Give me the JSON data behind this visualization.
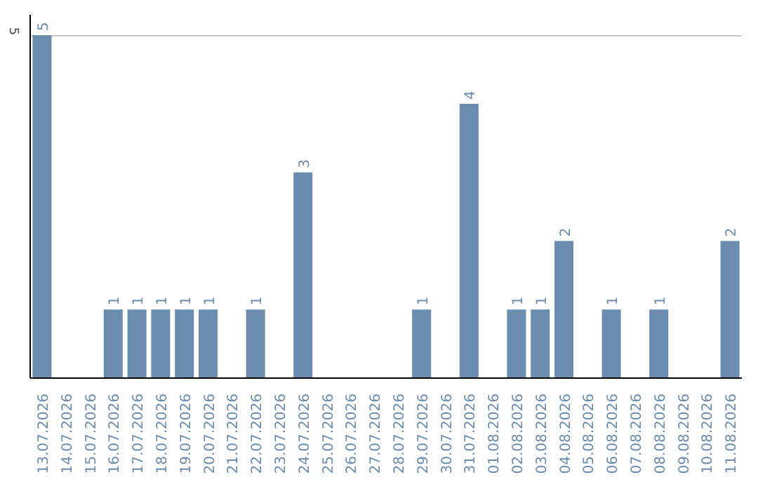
{
  "chart_data": {
    "type": "bar",
    "categories": [
      "13.07.2026",
      "14.07.2026",
      "15.07.2026",
      "16.07.2026",
      "17.07.2026",
      "18.07.2026",
      "19.07.2026",
      "20.07.2026",
      "21.07.2026",
      "22.07.2026",
      "23.07.2026",
      "24.07.2026",
      "25.07.2026",
      "26.07.2026",
      "27.07.2026",
      "28.07.2026",
      "29.07.2026",
      "30.07.2026",
      "31.07.2026",
      "01.08.2026",
      "02.08.2026",
      "03.08.2026",
      "04.08.2026",
      "05.08.2026",
      "06.08.2026",
      "07.08.2026",
      "08.08.2026",
      "09.08.2026",
      "10.08.2026",
      "11.08.2026"
    ],
    "values": [
      5,
      0,
      0,
      1,
      1,
      1,
      1,
      1,
      0,
      1,
      0,
      3,
      0,
      0,
      0,
      0,
      1,
      0,
      4,
      0,
      1,
      1,
      2,
      0,
      1,
      0,
      1,
      0,
      0,
      2
    ],
    "value_labels": [
      "5",
      null,
      null,
      "1",
      "1",
      "1",
      "1",
      "1",
      null,
      "1",
      null,
      "3",
      null,
      null,
      null,
      null,
      "1",
      null,
      "4",
      null,
      "1",
      "1",
      "2",
      null,
      "1",
      null,
      "1",
      null,
      null,
      "2"
    ],
    "color": "#6a8caf",
    "ylim": [
      0,
      5.3
    ],
    "yticks": [
      5
    ],
    "grid": "y"
  }
}
